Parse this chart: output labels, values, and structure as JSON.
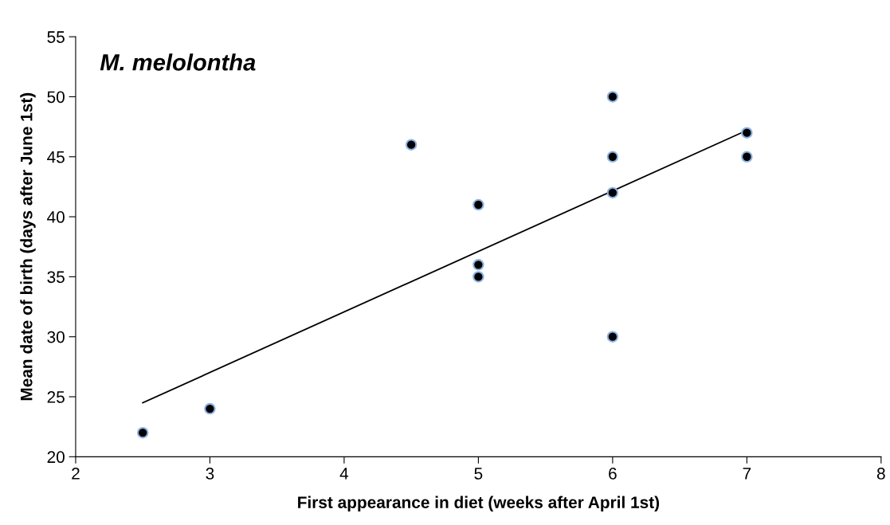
{
  "chart_data": {
    "type": "scatter",
    "title": "M. melolontha",
    "xlabel": "First appearance in diet (weeks after April 1st)",
    "ylabel": "Mean date of birth (days after June 1st)",
    "series": [
      {
        "color": "#000000",
        "marker": "circle",
        "x": [
          2.5,
          3,
          4.5,
          5,
          5,
          5,
          6,
          6,
          6,
          6,
          7,
          7
        ],
        "values": [
          22,
          24,
          46,
          41,
          36,
          35,
          50,
          45,
          42,
          30,
          47,
          45
        ]
      },
      {
        "type": "line",
        "color": "#000000",
        "marker": "none",
        "line_style": "solid",
        "x": [
          2.5,
          7
        ],
        "values": [
          24.5,
          47.2
        ]
      }
    ],
    "xlim": [
      2,
      8
    ],
    "xticks": [
      2,
      3,
      4,
      5,
      6,
      7,
      8
    ],
    "ylim": [
      20,
      55
    ],
    "yticks": [
      20,
      25,
      30,
      35,
      40,
      45,
      50,
      55
    ],
    "grid": false,
    "legend": false
  }
}
